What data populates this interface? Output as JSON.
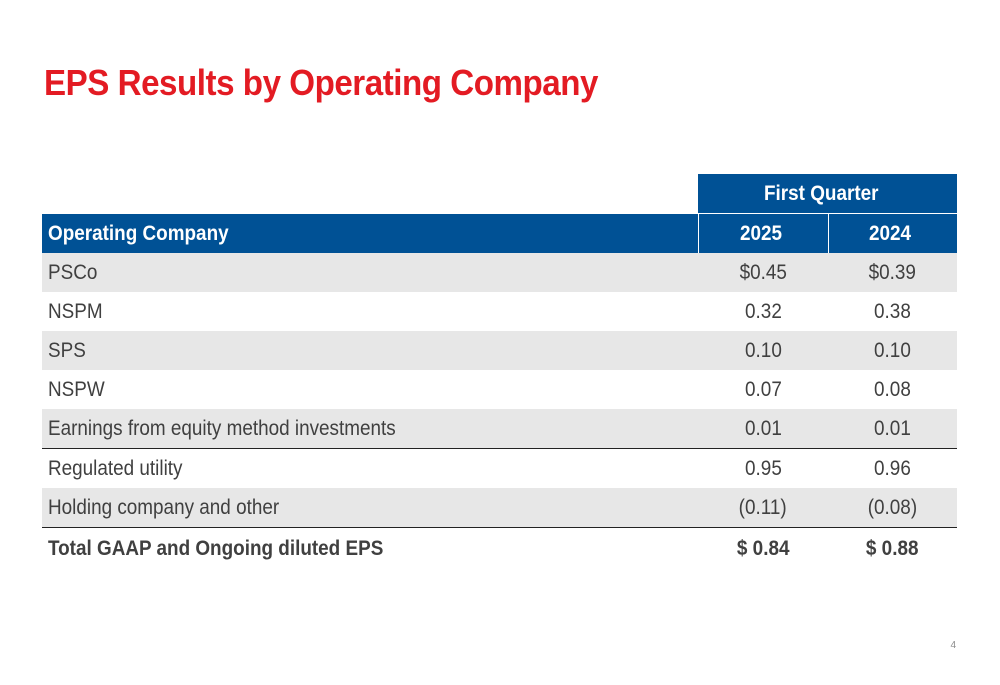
{
  "slide": {
    "title": "EPS Results by Operating Company",
    "page_number": "4"
  },
  "table": {
    "group_header": "First Quarter",
    "columns": {
      "name": "Operating Company",
      "y1": "2025",
      "y2": "2024"
    },
    "rows": [
      {
        "name": "PSCo",
        "y1": "$0.45",
        "y2": "$0.39"
      },
      {
        "name": "NSPM",
        "y1": "0.32",
        "y2": "0.38"
      },
      {
        "name": "SPS",
        "y1": "0.10",
        "y2": "0.10"
      },
      {
        "name": "NSPW",
        "y1": "0.07",
        "y2": "0.08"
      },
      {
        "name": "Earnings from equity method investments",
        "y1": "0.01",
        "y2": "0.01"
      },
      {
        "name": "Regulated utility",
        "y1": "0.95",
        "y2": "0.96"
      },
      {
        "name": "Holding company and other",
        "y1": "(0.11)",
        "y2": "(0.08)"
      },
      {
        "name": "Total GAAP and Ongoing diluted EPS",
        "y1": "$ 0.84",
        "y2": "$ 0.88"
      }
    ]
  },
  "colors": {
    "title": "#e31b23",
    "header_fill": "#005195",
    "row_shade": "#e7e7e7"
  }
}
